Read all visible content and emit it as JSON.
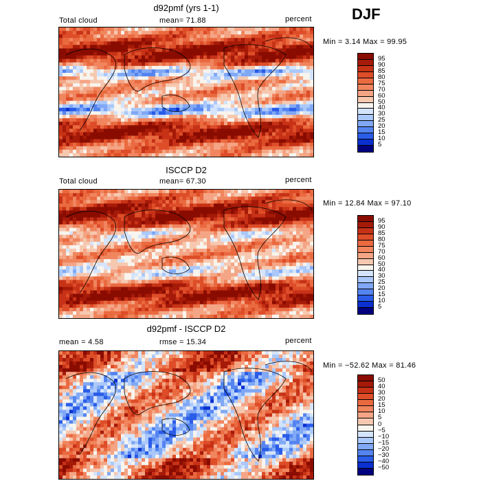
{
  "season": "DJF",
  "colors": {
    "panel1_scale": [
      "#00007f",
      "#0a30d0",
      "#2a5ce8",
      "#5484f0",
      "#80a8f5",
      "#aac8fa",
      "#d4e4fd",
      "#f8f4ee",
      "#f6c8b0",
      "#f4a585",
      "#f0855e",
      "#ea6a40",
      "#dd4d28",
      "#c73217",
      "#a51a08",
      "#8a0c00"
    ],
    "panel3_scale": [
      "#00007f",
      "#0a30d0",
      "#2a5ce8",
      "#5484f0",
      "#80a8f5",
      "#aac8fa",
      "#d4e4fd",
      "#f8f4ee",
      "#f6c8b0",
      "#f4a585",
      "#f0855e",
      "#ea6a40",
      "#dd4d28",
      "#c73217",
      "#a51a08",
      "#8a0c00"
    ]
  },
  "panels": [
    {
      "title": "d92pmf (yrs 1-1)",
      "left_label": "Total cloud",
      "mid_label": "mean=  71.88",
      "right_label": "percent",
      "minmax": "Min =   3.14 Max =  99.95",
      "levels": [
        "95",
        "90",
        "85",
        "80",
        "75",
        "70",
        "60",
        "50",
        "40",
        "30",
        "25",
        "20",
        "15",
        "10",
        "5"
      ]
    },
    {
      "title": "ISCCP D2",
      "left_label": "Total cloud",
      "mid_label": "mean=  67.30",
      "right_label": "percent",
      "minmax": "Min =  12.84 Max =  97.10",
      "levels": [
        "95",
        "90",
        "85",
        "80",
        "75",
        "70",
        "60",
        "50",
        "40",
        "30",
        "25",
        "20",
        "15",
        "10",
        "5"
      ]
    },
    {
      "title": "d92pmf - ISCCP D2",
      "left_label": "mean =   4.58",
      "mid_label": "rmse =  15.34",
      "right_label": "percent",
      "minmax": "Min = −52.62 Max =  81.46",
      "levels": [
        "50",
        "40",
        "30",
        "20",
        "15",
        "10",
        "5",
        "0",
        "−5",
        "−10",
        "−15",
        "−20",
        "−30",
        "−40",
        "−50"
      ]
    }
  ],
  "chart_data": [
    {
      "type": "heatmap",
      "title": "d92pmf (yrs 1-1)",
      "variable": "Total cloud",
      "units": "percent",
      "mean": 71.88,
      "min": 3.14,
      "max": 99.95,
      "contour_levels": [
        5,
        10,
        15,
        20,
        25,
        30,
        40,
        50,
        60,
        70,
        75,
        80,
        85,
        90,
        95
      ]
    },
    {
      "type": "heatmap",
      "title": "ISCCP D2",
      "variable": "Total cloud",
      "units": "percent",
      "mean": 67.3,
      "min": 12.84,
      "max": 97.1,
      "contour_levels": [
        5,
        10,
        15,
        20,
        25,
        30,
        40,
        50,
        60,
        70,
        75,
        80,
        85,
        90,
        95
      ]
    },
    {
      "type": "heatmap",
      "title": "d92pmf - ISCCP D2",
      "units": "percent",
      "mean": 4.58,
      "rmse": 15.34,
      "min": -52.62,
      "max": 81.46,
      "contour_levels": [
        -50,
        -40,
        -30,
        -20,
        -15,
        -10,
        -5,
        0,
        5,
        10,
        15,
        20,
        30,
        40,
        50
      ]
    }
  ]
}
